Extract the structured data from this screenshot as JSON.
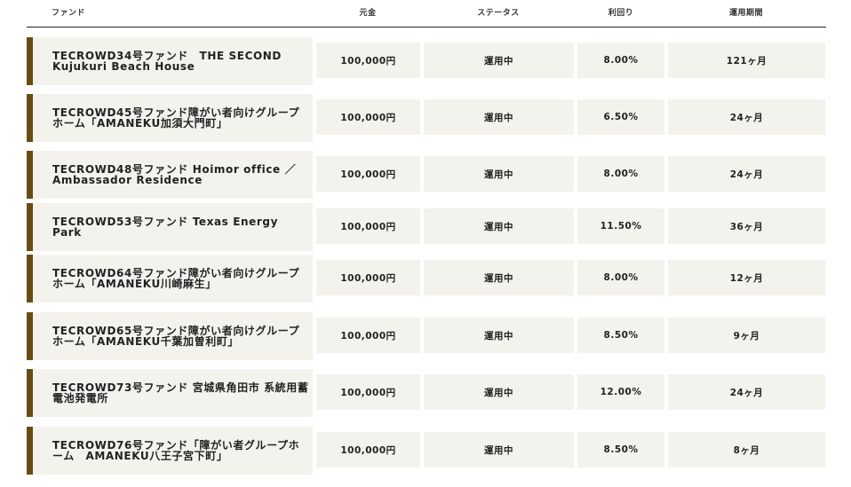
{
  "table": {
    "headers": {
      "fund": "ファンド",
      "principal": "元金",
      "status": "ステータス",
      "yield": "利回り",
      "period": "運用期間"
    },
    "rows": [
      {
        "name": "TECROWD34号ファンド　THE SECOND\nKujukuri Beach House",
        "principal": "100,000円",
        "status": "運用中",
        "yield": "8.00%",
        "period": "121ヶ月"
      },
      {
        "name": "TECROWD45号ファンド障がい者向けグループ\nホーム「AMANEKU加須大門町」",
        "principal": "100,000円",
        "status": "運用中",
        "yield": "6.50%",
        "period": "24ヶ月"
      },
      {
        "name": "TECROWD48号ファンド Hoimor office ／\nAmbassador Residence",
        "principal": "100,000円",
        "status": "運用中",
        "yield": "8.00%",
        "period": "24ヶ月"
      },
      {
        "name": "TECROWD53号ファンド Texas Energy Park",
        "principal": "100,000円",
        "status": "運用中",
        "yield": "11.50%",
        "period": "36ヶ月"
      },
      {
        "name": "TECROWD64号ファンド障がい者向けグループ\nホーム「AMANEKU川崎麻生」",
        "principal": "100,000円",
        "status": "運用中",
        "yield": "8.00%",
        "period": "12ヶ月"
      },
      {
        "name": "TECROWD65号ファンド障がい者向けグループ\nホーム「AMANEKU千葉加曽利町」",
        "principal": "100,000円",
        "status": "運用中",
        "yield": "8.50%",
        "period": "9ヶ月"
      },
      {
        "name": "TECROWD73号ファンド 宮城県角田市 系統用蓄\n電池発電所",
        "principal": "100,000円",
        "status": "運用中",
        "yield": "12.00%",
        "period": "24ヶ月"
      },
      {
        "name": "TECROWD76号ファンド「障がい者グループホ\nーム　AMANEKU八王子宮下町」",
        "principal": "100,000円",
        "status": "運用中",
        "yield": "8.50%",
        "period": "8ヶ月"
      }
    ]
  }
}
